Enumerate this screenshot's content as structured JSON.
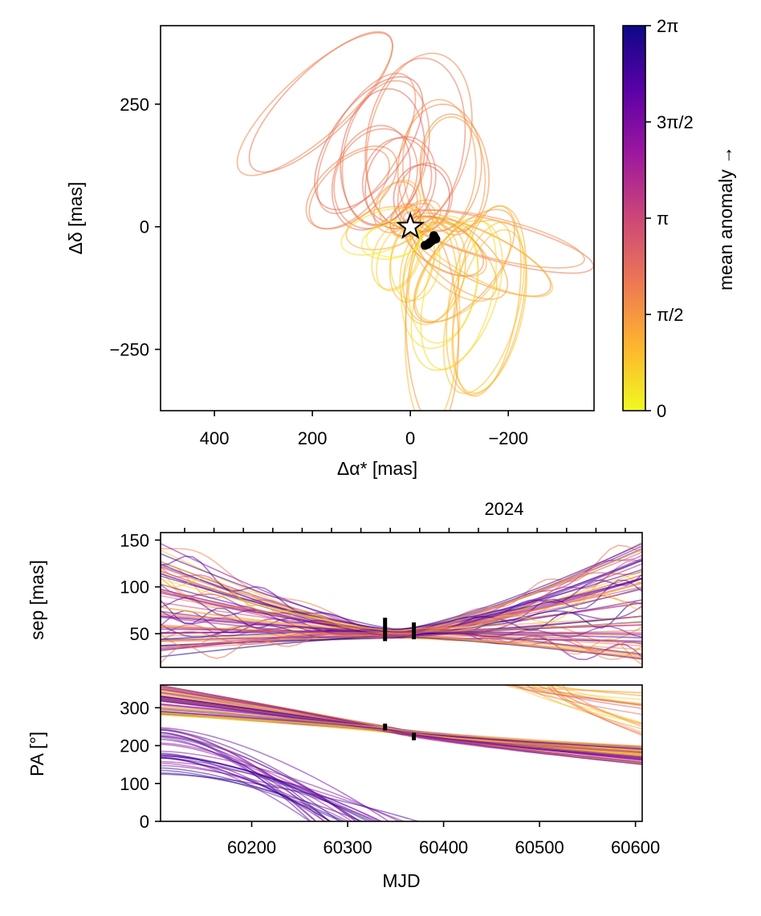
{
  "chart_data": [
    {
      "type": "line",
      "title": "",
      "xlabel": "Δα* [mas]",
      "ylabel": "Δδ [mas]",
      "xlim": [
        510,
        -375
      ],
      "ylim": [
        -375,
        410
      ],
      "xticks": [
        400,
        200,
        0,
        -200
      ],
      "xticklabels": [
        "400",
        "200",
        "0",
        "−200"
      ],
      "yticks": [
        -250,
        0,
        250
      ],
      "yticklabels": [
        "−250",
        "0",
        "250"
      ],
      "star": {
        "x": 0,
        "y": 0,
        "marker": "star"
      },
      "observations": [
        {
          "x": -48,
          "y": -18
        },
        {
          "x": -50,
          "y": -22
        },
        {
          "x": -52,
          "y": -25
        },
        {
          "x": -45,
          "y": -28
        },
        {
          "x": -40,
          "y": -32
        },
        {
          "x": -35,
          "y": -36
        },
        {
          "x": -30,
          "y": -38
        },
        {
          "x": -38,
          "y": -34
        }
      ],
      "orbits": [
        {
          "cx": -195,
          "cy": 250,
          "a": 205,
          "b": 65,
          "rot": 42,
          "anomaly": 1.55,
          "ox": 0.0,
          "oy": -0.7
        },
        {
          "cx": 10,
          "cy": 170,
          "a": 175,
          "b": 100,
          "rot": 82,
          "anomaly": 1.85,
          "ox": 0.15,
          "oy": -0.85
        },
        {
          "cx": -50,
          "cy": 150,
          "a": 150,
          "b": 85,
          "rot": 78,
          "anomaly": 1.7,
          "ox": 0.2,
          "oy": -0.85
        },
        {
          "cx": 60,
          "cy": 120,
          "a": 130,
          "b": 85,
          "rot": 85,
          "anomaly": 1.5,
          "ox": 0.1,
          "oy": -0.85
        },
        {
          "cx": -80,
          "cy": 100,
          "a": 110,
          "b": 75,
          "rot": 70,
          "anomaly": 1.9,
          "ox": 0.3,
          "oy": -0.8
        },
        {
          "cx": -120,
          "cy": 80,
          "a": 110,
          "b": 60,
          "rot": 40,
          "anomaly": 1.6,
          "ox": 0.5,
          "oy": -0.6
        },
        {
          "cx": 30,
          "cy": 60,
          "a": 70,
          "b": 55,
          "rot": 80,
          "anomaly": 1.75,
          "ox": 0.1,
          "oy": -0.8
        },
        {
          "cx": -30,
          "cy": 40,
          "a": 55,
          "b": 40,
          "rot": 60,
          "anomaly": 1.4,
          "ox": 0.2,
          "oy": -0.7
        },
        {
          "cx": 180,
          "cy": -30,
          "a": 200,
          "b": 40,
          "rot": -15,
          "anomaly": 1.8,
          "ox": 0.8,
          "oy": 0.1
        },
        {
          "cx": 140,
          "cy": -60,
          "a": 160,
          "b": 50,
          "rot": -25,
          "anomaly": 1.35,
          "ox": 0.85,
          "oy": 0.2
        },
        {
          "cx": 100,
          "cy": -60,
          "a": 120,
          "b": 55,
          "rot": -40,
          "anomaly": 1.2,
          "ox": 0.8,
          "oy": 0.3
        },
        {
          "cx": 70,
          "cy": -40,
          "a": 95,
          "b": 45,
          "rot": -30,
          "anomaly": 1.0,
          "ox": 0.75,
          "oy": 0.3
        },
        {
          "cx": 155,
          "cy": -150,
          "a": 195,
          "b": 75,
          "rot": 80,
          "anomaly": 0.8,
          "ox": 0.0,
          "oy": 0.75
        },
        {
          "cx": 150,
          "cy": -165,
          "a": 180,
          "b": 70,
          "rot": 75,
          "anomaly": 0.5,
          "ox": 0.05,
          "oy": 0.8
        },
        {
          "cx": 95,
          "cy": -140,
          "a": 160,
          "b": 80,
          "rot": 70,
          "anomaly": 0.3,
          "ox": 0.1,
          "oy": 0.8
        },
        {
          "cx": 60,
          "cy": -120,
          "a": 130,
          "b": 75,
          "rot": 78,
          "anomaly": 0.15,
          "ox": 0.1,
          "oy": 0.85
        },
        {
          "cx": 40,
          "cy": -95,
          "a": 105,
          "b": 60,
          "rot": 82,
          "anomaly": 0.55,
          "ox": 0.1,
          "oy": 0.85
        },
        {
          "cx": 10,
          "cy": -70,
          "a": 80,
          "b": 50,
          "rot": 85,
          "anomaly": 0.25,
          "ox": 0.05,
          "oy": 0.85
        },
        {
          "cx": -30,
          "cy": -60,
          "a": 70,
          "b": 45,
          "rot": 70,
          "anomaly": 0.4,
          "ox": 0.2,
          "oy": 0.8
        },
        {
          "cx": -60,
          "cy": -10,
          "a": 85,
          "b": 40,
          "rot": 20,
          "anomaly": 0.1,
          "ox": 0.55,
          "oy": 0.4
        },
        {
          "cx": 20,
          "cy": 20,
          "a": 45,
          "b": 30,
          "rot": 30,
          "anomaly": 1.1,
          "ox": 0.3,
          "oy": -0.4
        },
        {
          "cx": -10,
          "cy": 10,
          "a": 35,
          "b": 28,
          "rot": 50,
          "anomaly": 0.9,
          "ox": 0.3,
          "oy": -0.3
        },
        {
          "cx": -20,
          "cy": 90,
          "a": 95,
          "b": 70,
          "rot": 75,
          "anomaly": 1.95,
          "ox": 0.2,
          "oy": -0.85
        },
        {
          "cx": 90,
          "cy": 110,
          "a": 120,
          "b": 70,
          "rot": 95,
          "anomaly": 1.45,
          "ox": 0.0,
          "oy": -0.85
        },
        {
          "cx": -90,
          "cy": 170,
          "a": 160,
          "b": 70,
          "rot": 60,
          "anomaly": 1.65,
          "ox": 0.35,
          "oy": -0.8
        },
        {
          "cx": 45,
          "cy": -200,
          "a": 210,
          "b": 55,
          "rot": 88,
          "anomaly": 0.65,
          "ox": 0.05,
          "oy": 0.8
        },
        {
          "cx": 110,
          "cy": -80,
          "a": 140,
          "b": 65,
          "rot": 50,
          "anomaly": 1.25,
          "ox": 0.6,
          "oy": 0.5
        },
        {
          "cx": -40,
          "cy": -30,
          "a": 60,
          "b": 35,
          "rot": 10,
          "anomaly": 0.05,
          "ox": 0.5,
          "oy": 0.3
        }
      ]
    },
    {
      "type": "line",
      "title": "",
      "top_axis_label": "2024",
      "xlabel": "",
      "ylabel": "sep [mas]",
      "xlim": [
        60105,
        60607
      ],
      "ylim": [
        14,
        158
      ],
      "yticks": [
        50,
        100,
        150
      ],
      "yticklabels": [
        "50",
        "100",
        "150"
      ],
      "observations": [
        {
          "x": 60339,
          "ymin": 42,
          "ymax": 67
        },
        {
          "x": 60369,
          "ymin": 44,
          "ymax": 62
        }
      ],
      "fan": {
        "converge_x": 60352,
        "converge_y": 50,
        "left_range": [
          22,
          150
        ],
        "right_range": [
          22,
          152
        ],
        "count": 70
      }
    },
    {
      "type": "line",
      "title": "",
      "xlabel": "MJD",
      "ylabel": "PA [°]",
      "xlim": [
        60105,
        60607
      ],
      "ylim": [
        0,
        360
      ],
      "xticks": [
        60200,
        60300,
        60400,
        60500,
        60600
      ],
      "xticklabels": [
        "60200",
        "60300",
        "60400",
        "60500",
        "60600"
      ],
      "yticks": [
        0,
        100,
        200,
        300
      ],
      "yticklabels": [
        "0",
        "100",
        "200",
        "300"
      ],
      "observations": [
        {
          "x": 60339,
          "ymin": 240,
          "ymax": 258
        },
        {
          "x": 60369,
          "ymin": 214,
          "ymax": 234
        }
      ]
    }
  ],
  "colorbar": {
    "label": "mean anomaly →",
    "ticks": [
      "0",
      "π/2",
      "π",
      "3π/2",
      "2π"
    ],
    "colormap": [
      "#f0f921",
      "#fdb42f",
      "#ed7953",
      "#cc4778",
      "#9c179e",
      "#5c01a6",
      "#0d0887"
    ]
  }
}
